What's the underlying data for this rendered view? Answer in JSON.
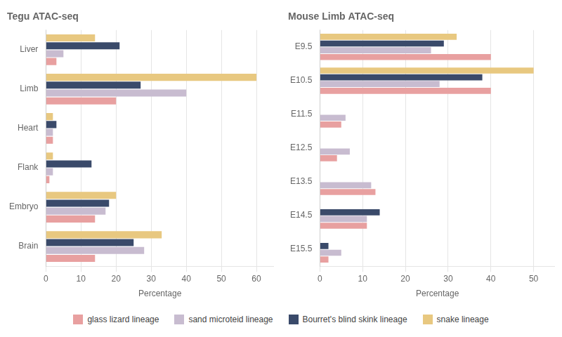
{
  "chart_data": [
    {
      "type": "bar",
      "orientation": "horizontal",
      "title": "Tegu ATAC-seq",
      "categories": [
        "Liver",
        "Limb",
        "Heart",
        "Flank",
        "Embryo",
        "Brain"
      ],
      "series": [
        {
          "name": "snake lineage",
          "color": "#e8c880",
          "values": [
            14,
            60,
            2,
            2,
            20,
            33
          ]
        },
        {
          "name": "Bourret's blind skink lineage",
          "color": "#3a4a6a",
          "values": [
            21,
            27,
            3,
            13,
            18,
            25
          ]
        },
        {
          "name": "sand microteid lineage",
          "color": "#c8bcd0",
          "values": [
            5,
            40,
            2,
            2,
            17,
            28
          ]
        },
        {
          "name": "glass lizard lineage",
          "color": "#e8a0a0",
          "values": [
            3,
            20,
            2,
            1,
            14,
            14
          ]
        }
      ],
      "xlabel": "Percentage",
      "xlim": [
        0,
        65
      ],
      "xticks": [
        0,
        10,
        20,
        30,
        40,
        50,
        60
      ],
      "grid": true,
      "legend": "bottom"
    },
    {
      "type": "bar",
      "orientation": "horizontal",
      "title": "Mouse Limb ATAC-seq",
      "categories": [
        "E9.5",
        "E10.5",
        "E11.5",
        "E12.5",
        "E13.5",
        "E14.5",
        "E15.5"
      ],
      "series": [
        {
          "name": "snake lineage",
          "color": "#e8c880",
          "values": [
            32,
            50,
            0,
            0,
            0,
            0,
            0
          ]
        },
        {
          "name": "Bourret's blind skink lineage",
          "color": "#3a4a6a",
          "values": [
            29,
            38,
            0,
            0,
            0,
            14,
            2
          ]
        },
        {
          "name": "sand microteid lineage",
          "color": "#c8bcd0",
          "values": [
            26,
            28,
            6,
            7,
            12,
            11,
            5
          ]
        },
        {
          "name": "glass lizard lineage",
          "color": "#e8a0a0",
          "values": [
            40,
            40,
            5,
            4,
            13,
            11,
            2
          ]
        }
      ],
      "xlabel": "Percentage",
      "xlim": [
        0,
        55
      ],
      "xticks": [
        0,
        10,
        20,
        30,
        40,
        50
      ],
      "grid": true,
      "legend": "bottom"
    }
  ]
}
